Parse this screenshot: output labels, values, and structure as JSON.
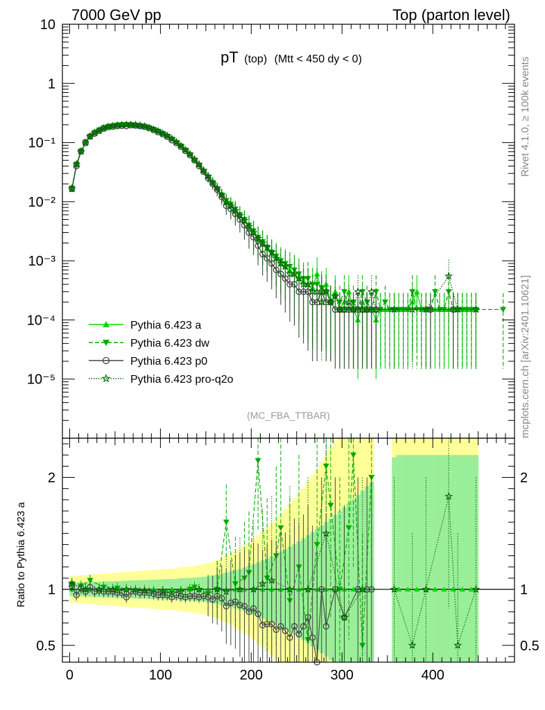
{
  "header": {
    "left": "7000 GeV pp",
    "right": "Top (parton level)"
  },
  "side_labels": {
    "rivet": "Rivet 4.1.0, ≥ 100k events",
    "mcplots": "mcplots.cern.ch [arXiv:2401.10621]"
  },
  "chart_data": {
    "type": "scatter",
    "title_main": "pT",
    "title_sub": "(top)",
    "title_cond": "(Mtt < 450 dy < 0)",
    "watermark": "(MC_FBA_TTBAR)",
    "xlim": [
      -8,
      490
    ],
    "main_panel": {
      "yscale": "log",
      "ylim": [
        1e-06,
        10
      ],
      "ytick_labels": [
        "10",
        "1",
        "10⁻¹",
        "10⁻²",
        "10⁻³",
        "10⁻⁴",
        "10⁻⁵"
      ],
      "ytick_values": [
        10,
        1,
        0.1,
        0.01,
        0.001,
        0.0001,
        1e-05
      ]
    },
    "ratio_panel": {
      "ylabel": "Ratio to Pythia 6.423 a",
      "ylim": [
        0.35,
        2.35
      ],
      "ytick_labels": [
        "2",
        "1",
        "0.5"
      ],
      "ytick_values": [
        2,
        1,
        0.5
      ]
    },
    "xtick_labels": [
      "0",
      "100",
      "200",
      "300",
      "400"
    ],
    "xtick_values": [
      0,
      100,
      200,
      300,
      400
    ],
    "legend": [
      {
        "label": "Pythia 6.423 a",
        "color": "#00dd00",
        "marker": "triangle-up",
        "dash": ""
      },
      {
        "label": "Pythia 6.423 dw",
        "color": "#00aa00",
        "marker": "triangle-down",
        "dash": "6,3"
      },
      {
        "label": "Pythia 6.423 p0",
        "color": "#444444",
        "marker": "circle-open",
        "dash": ""
      },
      {
        "label": "Pythia 6.423 pro-q2o",
        "color": "#006600",
        "marker": "star",
        "dash": "1.5,2"
      }
    ],
    "series": [
      {
        "name": "Pythia 6.423 a",
        "x": [
          2.5,
          7.5,
          12.5,
          17.5,
          22.5,
          27.5,
          32.5,
          37.5,
          42.5,
          47.5,
          52.5,
          57.5,
          62.5,
          67.5,
          72.5,
          77.5,
          82.5,
          87.5,
          92.5,
          97.5,
          102.5,
          107.5,
          112.5,
          117.5,
          122.5,
          127.5,
          132.5,
          137.5,
          142.5,
          147.5,
          152.5,
          157.5,
          162.5,
          167.5,
          172.5,
          177.5,
          182.5,
          187.5,
          192.5,
          197.5,
          202.5,
          207.5,
          212.5,
          217.5,
          222.5,
          227.5,
          232.5,
          237.5,
          242.5,
          247.5,
          252.5,
          257.5,
          262.5,
          267.5,
          272.5,
          277.5,
          282.5,
          287.5,
          292.5,
          297.5,
          302.5,
          307.5,
          312.5,
          317.5,
          322.5,
          327.5,
          332.5,
          337.5,
          342.5,
          347.5,
          352.5,
          357.5,
          362.5,
          367.5,
          372.5,
          377.5,
          382.5,
          387.5,
          392.5,
          397.5,
          402.5,
          407.5,
          412.5,
          417.5,
          422.5,
          427.5,
          432.5,
          437.5,
          442.5,
          447.5
        ],
        "y": [
          0.016,
          0.042,
          0.07,
          0.1,
          0.125,
          0.145,
          0.16,
          0.175,
          0.185,
          0.19,
          0.195,
          0.198,
          0.2,
          0.2,
          0.198,
          0.195,
          0.19,
          0.18,
          0.17,
          0.158,
          0.145,
          0.132,
          0.118,
          0.103,
          0.09,
          0.077,
          0.065,
          0.053,
          0.043,
          0.034,
          0.027,
          0.022,
          0.017,
          0.013,
          0.01,
          0.0085,
          0.007,
          0.0058,
          0.0047,
          0.0038,
          0.003,
          0.0023,
          0.0019,
          0.0016,
          0.0013,
          0.0011,
          0.0009,
          0.0008,
          0.0007,
          0.0006,
          0.0005,
          0.00045,
          0.0004,
          0.00035,
          0.0006,
          0.0003,
          0.0004,
          0.0002,
          0.0003,
          0.00015,
          0.0002,
          0.0003,
          0.00015,
          0.0001,
          0.0002,
          0.00015,
          0.00015,
          0.0001,
          0.00015,
          0.00015,
          0.00015,
          0.00015,
          0.00015,
          0.00015,
          0.00015,
          0.0002,
          0.0003,
          0.00015,
          0.00015,
          0.00015,
          0.00015,
          0.00015,
          0.00015,
          0.00015,
          0.00015,
          0.00015,
          0.00015,
          0.00015,
          0.00015,
          0.00015
        ]
      },
      {
        "name": "Pythia 6.423 dw",
        "x": [
          2.5,
          7.5,
          12.5,
          17.5,
          22.5,
          27.5,
          32.5,
          37.5,
          42.5,
          47.5,
          52.5,
          57.5,
          62.5,
          67.5,
          72.5,
          77.5,
          82.5,
          87.5,
          92.5,
          97.5,
          102.5,
          107.5,
          112.5,
          117.5,
          122.5,
          127.5,
          132.5,
          137.5,
          142.5,
          147.5,
          152.5,
          157.5,
          162.5,
          167.5,
          172.5,
          177.5,
          182.5,
          187.5,
          192.5,
          197.5,
          202.5,
          207.5,
          212.5,
          217.5,
          222.5,
          227.5,
          232.5,
          237.5,
          242.5,
          247.5,
          252.5,
          257.5,
          262.5,
          267.5,
          272.5,
          277.5,
          282.5,
          287.5,
          292.5,
          297.5,
          302.5,
          307.5,
          312.5,
          317.5,
          322.5,
          327.5,
          332.5,
          337.5,
          342.5,
          347.5,
          352.5,
          357.5,
          362.5,
          367.5,
          372.5,
          377.5,
          382.5,
          387.5,
          392.5,
          397.5,
          402.5,
          407.5,
          412.5,
          417.5,
          422.5,
          427.5,
          432.5,
          437.5,
          442.5,
          447.5,
          477.5
        ],
        "y": [
          0.017,
          0.043,
          0.072,
          0.103,
          0.128,
          0.148,
          0.163,
          0.178,
          0.187,
          0.192,
          0.197,
          0.2,
          0.202,
          0.2,
          0.197,
          0.192,
          0.188,
          0.178,
          0.167,
          0.155,
          0.142,
          0.128,
          0.114,
          0.1,
          0.087,
          0.074,
          0.062,
          0.05,
          0.041,
          0.032,
          0.026,
          0.021,
          0.0165,
          0.013,
          0.0105,
          0.009,
          0.0075,
          0.006,
          0.005,
          0.004,
          0.0032,
          0.0025,
          0.0021,
          0.0017,
          0.0014,
          0.0012,
          0.001,
          0.0009,
          0.0008,
          0.0007,
          0.0006,
          0.0005,
          0.0005,
          0.0004,
          0.0004,
          0.00035,
          0.0003,
          0.0002,
          0.00025,
          0.0002,
          0.0003,
          0.00015,
          0.0002,
          0.00015,
          0.0003,
          0.0002,
          0.00015,
          0.0003,
          0.00015,
          0.0002,
          0.00015,
          0.00015,
          0.00015,
          0.00015,
          0.00015,
          0.0003,
          0.00015,
          0.00015,
          0.00015,
          0.00015,
          0.0003,
          0.00015,
          0.00015,
          0.0003,
          0.00015,
          0.00015,
          0.00015,
          0.00015,
          0.00015,
          0.00015,
          0.00015
        ]
      },
      {
        "name": "Pythia 6.423 p0",
        "x": [
          2.5,
          7.5,
          12.5,
          17.5,
          22.5,
          27.5,
          32.5,
          37.5,
          42.5,
          47.5,
          52.5,
          57.5,
          62.5,
          67.5,
          72.5,
          77.5,
          82.5,
          87.5,
          92.5,
          97.5,
          102.5,
          107.5,
          112.5,
          117.5,
          122.5,
          127.5,
          132.5,
          137.5,
          142.5,
          147.5,
          152.5,
          157.5,
          162.5,
          167.5,
          172.5,
          177.5,
          182.5,
          187.5,
          192.5,
          197.5,
          202.5,
          207.5,
          212.5,
          217.5,
          222.5,
          227.5,
          232.5,
          237.5,
          242.5,
          247.5,
          252.5,
          257.5,
          262.5,
          267.5,
          272.5,
          277.5,
          282.5,
          287.5,
          292.5,
          297.5,
          302.5,
          307.5,
          312.5,
          317.5,
          322.5,
          327.5,
          332.5,
          337.5,
          397.5,
          422.5
        ],
        "y": [
          0.0165,
          0.04,
          0.071,
          0.098,
          0.127,
          0.142,
          0.158,
          0.172,
          0.182,
          0.186,
          0.19,
          0.192,
          0.19,
          0.196,
          0.194,
          0.19,
          0.185,
          0.175,
          0.163,
          0.15,
          0.138,
          0.125,
          0.11,
          0.098,
          0.085,
          0.072,
          0.061,
          0.05,
          0.04,
          0.032,
          0.025,
          0.02,
          0.016,
          0.012,
          0.0085,
          0.0075,
          0.0062,
          0.005,
          0.004,
          0.003,
          0.0025,
          0.0018,
          0.0013,
          0.0011,
          0.0009,
          0.0007,
          0.0006,
          0.0005,
          0.0004,
          0.0004,
          0.0003,
          0.0003,
          0.0003,
          0.0002,
          0.0002,
          0.0003,
          0.0002,
          0.0002,
          0.00015,
          0.00015,
          0.00015,
          0.00015,
          0.00015,
          0.00015,
          0.00015,
          0.00015,
          0.00015,
          0.00015,
          0.00015,
          0.00015
        ]
      },
      {
        "name": "Pythia 6.423 pro-q2o",
        "x": [
          2.5,
          7.5,
          12.5,
          17.5,
          22.5,
          27.5,
          32.5,
          37.5,
          42.5,
          47.5,
          52.5,
          57.5,
          62.5,
          67.5,
          72.5,
          77.5,
          82.5,
          87.5,
          92.5,
          97.5,
          102.5,
          107.5,
          112.5,
          117.5,
          122.5,
          127.5,
          132.5,
          137.5,
          142.5,
          147.5,
          152.5,
          157.5,
          162.5,
          167.5,
          172.5,
          177.5,
          182.5,
          187.5,
          192.5,
          197.5,
          202.5,
          207.5,
          212.5,
          217.5,
          222.5,
          227.5,
          232.5,
          237.5,
          242.5,
          247.5,
          252.5,
          257.5,
          262.5,
          267.5,
          272.5,
          277.5,
          282.5,
          287.5,
          292.5,
          297.5,
          302.5,
          307.5,
          312.5,
          317.5,
          322.5,
          327.5,
          332.5,
          337.5,
          357.5,
          377.5,
          392.5,
          417.5,
          427.5,
          447.5
        ],
        "y": [
          0.0168,
          0.043,
          0.071,
          0.1,
          0.127,
          0.146,
          0.16,
          0.176,
          0.186,
          0.19,
          0.196,
          0.199,
          0.2,
          0.2,
          0.199,
          0.194,
          0.188,
          0.178,
          0.166,
          0.155,
          0.142,
          0.13,
          0.116,
          0.102,
          0.088,
          0.075,
          0.064,
          0.052,
          0.043,
          0.034,
          0.027,
          0.021,
          0.017,
          0.013,
          0.0098,
          0.0085,
          0.007,
          0.0058,
          0.0048,
          0.0038,
          0.003,
          0.0024,
          0.002,
          0.0017,
          0.0014,
          0.0011,
          0.0009,
          0.0008,
          0.0006,
          0.0006,
          0.0005,
          0.0004,
          0.0004,
          0.0003,
          0.0003,
          0.0002,
          0.0003,
          0.0002,
          0.00025,
          0.00015,
          0.00015,
          0.0002,
          0.00015,
          0.0003,
          0.00015,
          0.00015,
          0.0003,
          0.00015,
          0.00015,
          0.00015,
          0.00015,
          0.00055,
          0.00015,
          0.00015
        ]
      }
    ],
    "ratio_series": [
      {
        "name": "Pythia 6.423 dw",
        "x": [
          2.5,
          12.5,
          22.5,
          37.5,
          52.5,
          72.5,
          92.5,
          112.5,
          132.5,
          137.5,
          152.5,
          162.5,
          172.5,
          182.5,
          192.5,
          197.5,
          207.5,
          217.5,
          227.5,
          232.5,
          242.5,
          252.5,
          262.5,
          272.5,
          282.5,
          287.5,
          297.5,
          307.5,
          312.5,
          322.5,
          332.5
        ],
        "y": [
          1.05,
          1.03,
          1.08,
          1.02,
          1.01,
          0.99,
          0.98,
          0.97,
          1.0,
          1.02,
          0.96,
          1.0,
          1.6,
          1.05,
          1.1,
          1.15,
          2.15,
          1.1,
          1.3,
          1.55,
          0.9,
          1.2,
          0.55,
          1.4,
          2.1,
          1.75,
          1.0,
          1.55,
          2.2,
          0.5,
          2.0
        ]
      },
      {
        "name": "Pythia 6.423 p0",
        "x": [
          2.5,
          7.5,
          12.5,
          17.5,
          22.5,
          27.5,
          32.5,
          37.5,
          42.5,
          47.5,
          52.5,
          57.5,
          62.5,
          67.5,
          72.5,
          77.5,
          82.5,
          87.5,
          92.5,
          97.5,
          102.5,
          107.5,
          112.5,
          117.5,
          122.5,
          127.5,
          132.5,
          137.5,
          142.5,
          147.5,
          152.5,
          157.5,
          162.5,
          167.5,
          172.5,
          177.5,
          182.5,
          187.5,
          192.5,
          197.5,
          202.5,
          207.5,
          212.5,
          217.5,
          222.5,
          227.5,
          232.5,
          237.5,
          242.5,
          247.5,
          252.5,
          257.5,
          262.5,
          267.5,
          272.5,
          277.5,
          282.5,
          292.5,
          302.5,
          317.5,
          327.5,
          332.5
        ],
        "y": [
          1.03,
          0.95,
          1.01,
          0.98,
          1.02,
          0.98,
          0.99,
          0.98,
          0.98,
          0.98,
          0.97,
          0.97,
          0.93,
          0.98,
          0.98,
          0.97,
          0.97,
          0.97,
          0.96,
          0.95,
          0.95,
          0.95,
          0.93,
          0.95,
          0.94,
          0.93,
          0.94,
          0.94,
          0.93,
          0.94,
          0.93,
          0.91,
          0.94,
          0.92,
          0.85,
          0.88,
          0.89,
          0.86,
          0.85,
          0.8,
          0.83,
          0.78,
          0.68,
          0.69,
          0.69,
          0.64,
          0.67,
          0.63,
          0.57,
          0.67,
          0.6,
          0.67,
          0.75,
          0.57,
          0.33,
          1.0,
          0.67,
          1.0,
          0.75,
          1.0,
          1.0,
          1.0
        ]
      },
      {
        "name": "Pythia 6.423 pro-q2o",
        "x": [
          2.5,
          17.5,
          32.5,
          47.5,
          62.5,
          82.5,
          102.5,
          122.5,
          142.5,
          162.5,
          172.5,
          187.5,
          202.5,
          212.5,
          222.5,
          242.5,
          262.5,
          282.5,
          302.5,
          322.5,
          357.5,
          377.5,
          392.5,
          417.5,
          427.5,
          447.5
        ],
        "y": [
          1.05,
          1.0,
          1.0,
          1.0,
          1.0,
          0.99,
          0.98,
          0.98,
          1.0,
          1.0,
          0.98,
          1.0,
          1.0,
          1.05,
          1.08,
          1.0,
          1.0,
          1.5,
          0.75,
          1.0,
          1.0,
          0.5,
          1.0,
          1.83,
          0.5,
          1.0
        ]
      }
    ]
  }
}
